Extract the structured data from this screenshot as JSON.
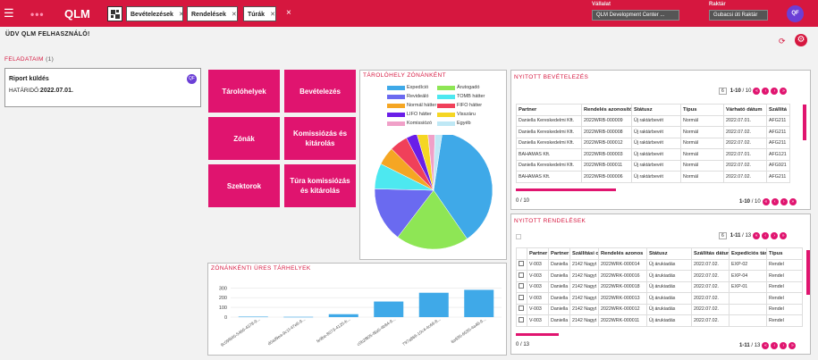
{
  "topbar": {
    "logo_dots": "•••",
    "logo_text": "QLM",
    "tabs": [
      "Bevételezések",
      "Rendelések",
      "Túrák"
    ],
    "close_all": "×",
    "company_label": "Vállalat",
    "company_value": "QLM Development Center ...",
    "warehouse_label": "Raktár",
    "warehouse_value": "Gubacsi úti Raktár",
    "avatar": "QF"
  },
  "welcome": "ÜDV QLM FELHASZNÁLÓ!",
  "tasks": {
    "title": "FELADATAIM",
    "count": "(1)",
    "item_title": "Riport küldés",
    "deadline_label": "HATÁRIDŐ:",
    "deadline_value": "2022.07.01.",
    "avatar": "QF"
  },
  "tiles": [
    "Tárolóhelyek",
    "Bevételezés",
    "Zónák",
    "Komissiózás és kitárolás",
    "Szektorok",
    "Túra komissiózás és kitárolás"
  ],
  "pie": {
    "title": "TÁROLÓHELY ZÓNÁNKÉNT",
    "legend": [
      {
        "label": "Expedíció",
        "color": "#3fa9e8"
      },
      {
        "label": "Árutogadó",
        "color": "#8ee655"
      },
      {
        "label": "Revideáló",
        "color": "#6a6af0"
      },
      {
        "label": "TOMB hátter",
        "color": "#4de8f0"
      },
      {
        "label": "Normál hátter",
        "color": "#f5a623"
      },
      {
        "label": "FIFO hátter",
        "color": "#f0405a"
      },
      {
        "label": "LIFO hátter",
        "color": "#6a1ee8"
      },
      {
        "label": "Visszáru",
        "color": "#f5d623"
      },
      {
        "label": "Komissiózó",
        "color": "#f0a0c8"
      },
      {
        "label": "Egyéb",
        "color": "#bfe8f5"
      }
    ]
  },
  "chart_data": {
    "type": "bar",
    "title": "ZÓNÁNKÉNTI ÜRES TÁRHELYEK",
    "categories": [
      "9c09f845-5466-4378-9...",
      "d0ad9ea-9c1f-47e6-9...",
      "fe9be-8073-4125-b...",
      "c0b2f805-f8a5-4b84-9...",
      "797a866-10c4-4c69-8...",
      "8a935-6535-4a48-9..."
    ],
    "values": [
      5,
      3,
      30,
      160,
      250,
      280
    ],
    "yticks": [
      0,
      100,
      200,
      300
    ],
    "ylim": [
      0,
      330
    ]
  },
  "pie_data": {
    "type": "pie",
    "values": [
      38,
      20,
      15,
      7,
      5,
      5,
      3,
      3,
      2,
      2
    ],
    "colors": [
      "#3fa9e8",
      "#8ee655",
      "#6a6af0",
      "#4de8f0",
      "#f5a623",
      "#f0405a",
      "#6a1ee8",
      "#f5d623",
      "#f0a0c8",
      "#bfe8f5"
    ]
  },
  "receipts": {
    "title": "NYITOTT BEVÉTELEZÉS",
    "page_size": "6",
    "range": "1-10",
    "total": "/ 10",
    "columns": [
      "Partner",
      "Rendelés azonosító",
      "Státusz",
      "Típus",
      "Várható dátum",
      "Szállítá"
    ],
    "rows": [
      [
        "Daniella Kereskedelmi Kft.",
        "2022WRB-000009",
        "Új raktárbevét",
        "Normál",
        "2022.07.01.",
        "AFG211"
      ],
      [
        "Daniella Kereskedelmi Kft.",
        "2022WRB-000008",
        "Új raktárbevét",
        "Normál",
        "2022.07.02.",
        "AFG211"
      ],
      [
        "Daniella Kereskedelmi Kft.",
        "2022WRB-000012",
        "Új raktárbevét",
        "Normál",
        "2022.07.02.",
        "AFG211"
      ],
      [
        "BAHAMAS Kft.",
        "2022WRB-000003",
        "Új raktárbevét",
        "Normál",
        "2022.07.01.",
        "AFG121"
      ],
      [
        "Daniella Kereskedelmi Kft.",
        "2022WRB-000011",
        "Új raktárbevét",
        "Normál",
        "2022.07.02.",
        "AFG921"
      ],
      [
        "BAHAMAS Kft.",
        "2022WRB-000006",
        "Új raktárbevét",
        "Normál",
        "2022.07.02.",
        "AFG211"
      ]
    ],
    "footer_left": "0 / 10",
    "footer_range": "1-10",
    "footer_total": "/ 10"
  },
  "orders": {
    "title": "NYITOTT RENDELÉSEK",
    "page_size": "6",
    "range": "1-11",
    "total": "/ 13",
    "columns": [
      "",
      "Partner kó",
      "Partner",
      "Szállítási c",
      "Rendelés azonos",
      "Státusz",
      "Szállítás dátum",
      "Expedíciós tár",
      "Típus"
    ],
    "rows": [
      [
        "",
        "V-003",
        "Daniella I",
        "2142 Nagyt",
        "2022WRK-000014",
        "Új árukiadás",
        "2022.07.02.",
        "EXP-02",
        "Rendel"
      ],
      [
        "",
        "V-003",
        "Daniella I",
        "2142 Nagyt",
        "2022WRK-000016",
        "Új árukiadás",
        "2022.07.02.",
        "EXP-04",
        "Rendel"
      ],
      [
        "",
        "V-003",
        "Daniella I",
        "2142 Nagyt",
        "2022WRK-000018",
        "Új árukiadás",
        "2022.07.02.",
        "EXP-01",
        "Rendel"
      ],
      [
        "",
        "V-003",
        "Daniella I",
        "2142 Nagyt",
        "2022WRK-000013",
        "Új árukiadás",
        "2022.07.02.",
        "",
        "Rendel"
      ],
      [
        "",
        "V-003",
        "Daniella I",
        "2142 Nagyt",
        "2022WRK-000012",
        "Új árukiadás",
        "2022.07.02.",
        "",
        "Rendel"
      ],
      [
        "",
        "V-003",
        "Daniella I",
        "2142 Nagyt",
        "2022WRK-000011",
        "Új árukiadás",
        "2022.07.02.",
        "",
        "Rendel"
      ]
    ],
    "footer_left": "0 / 13",
    "footer_range": "1-11",
    "footer_total": "/ 13"
  }
}
